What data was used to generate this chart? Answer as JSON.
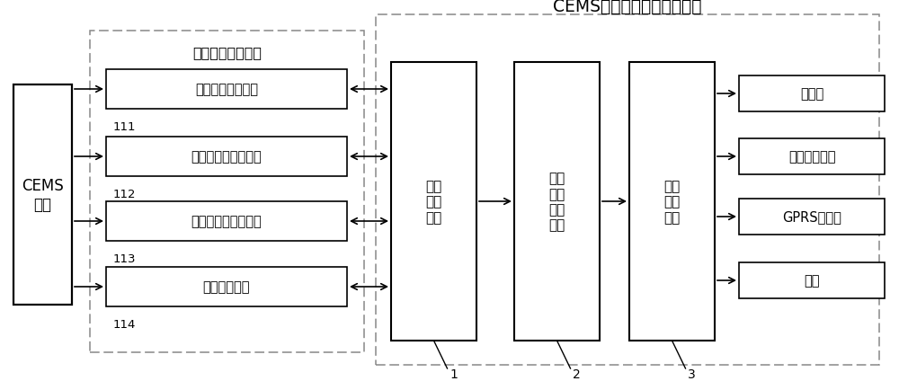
{
  "title": "CEMS系统智能故障检测装置",
  "sensor_group_label": "参数采集传感器组",
  "cems_label": "CEMS\n系统",
  "sensors": [
    "浮子流量计传感器",
    "蠕动泵管监测传感器",
    "采样探头滤芯传感器",
    "温度传感器组"
  ],
  "sensor_ids": [
    "111",
    "112",
    "113",
    "114"
  ],
  "units": [
    "参数\n采集\n单元",
    "数据\n故障\n分析\n单元",
    "故障\n报警\n单元"
  ],
  "unit_ids": [
    "1",
    "2",
    "3"
  ],
  "outputs": [
    "打印机",
    "手机信号基站",
    "GPRS发送端",
    "网络"
  ],
  "bg_color": "#ffffff",
  "box_color": "#000000",
  "text_color": "#000000",
  "dashed_color": "#888888",
  "font_size_title": 14,
  "font_size_label": 11,
  "font_size_small": 9
}
